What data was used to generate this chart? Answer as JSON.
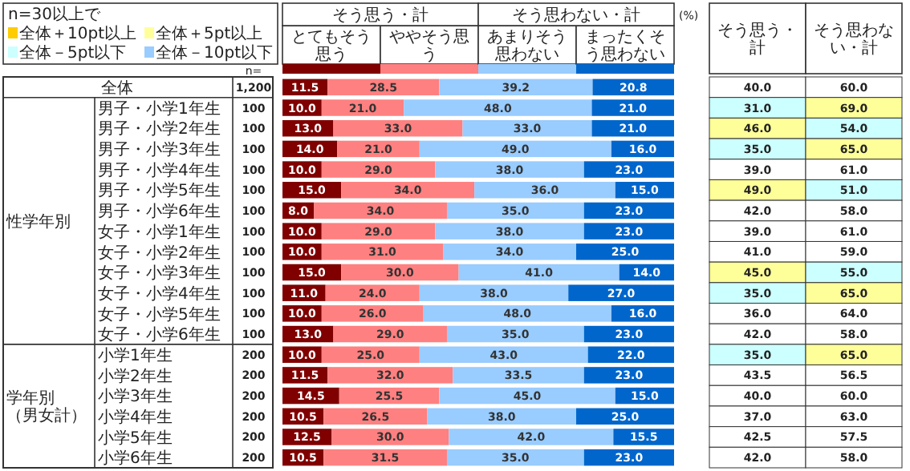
{
  "chart_data": [
    {
      "type": "bar",
      "orientation": "horizontal",
      "stacked": true,
      "legend": "top",
      "xlim": [
        0,
        100
      ],
      "categories": [
        "全体",
        "男子・小学1年生",
        "男子・小学2年生",
        "男子・小学3年生",
        "男子・小学4年生",
        "男子・小学5年生",
        "男子・小学6年生",
        "女子・小学1年生",
        "女子・小学2年生",
        "女子・小学3年生",
        "女子・小学4年生",
        "女子・小学5年生",
        "女子・小学6年生",
        "小学1年生",
        "小学2年生",
        "小学3年生",
        "小学4年生",
        "小学5年生",
        "小学6年生"
      ],
      "series": [
        {
          "name": "とてもそう思う",
          "color": "#800000",
          "values": [
            11.5,
            10.0,
            13.0,
            14.0,
            10.0,
            15.0,
            8.0,
            10.0,
            10.0,
            15.0,
            11.0,
            10.0,
            13.0,
            10.0,
            11.5,
            14.5,
            10.5,
            12.5,
            10.5
          ],
          "value_labels": [
            "11.5",
            "10.0",
            "13.0",
            "14.0",
            "10.0",
            "15.0",
            "8.0",
            "10.0",
            "10.0",
            "15.0",
            "11.0",
            "10.0",
            "13.0",
            "10.0",
            "11.5",
            "14.5",
            "10.5",
            "12.5",
            "10.5"
          ]
        },
        {
          "name": "ややそう思う",
          "color": "#ff8080",
          "values": [
            28.5,
            21.0,
            33.0,
            21.0,
            29.0,
            34.0,
            34.0,
            29.0,
            31.0,
            30.0,
            24.0,
            26.0,
            29.0,
            25.0,
            32.0,
            25.5,
            26.5,
            30.0,
            31.5
          ],
          "value_labels": [
            "28.5",
            "21.0",
            "33.0",
            "21.0",
            "29.0",
            "34.0",
            "34.0",
            "29.0",
            "31.0",
            "30.0",
            "24.0",
            "26.0",
            "29.0",
            "25.0",
            "32.0",
            "25.5",
            "26.5",
            "30.0",
            "31.5"
          ]
        },
        {
          "name": "あまりそう思わない",
          "color": "#99ccff",
          "values": [
            39.2,
            48.0,
            33.0,
            49.0,
            38.0,
            36.0,
            35.0,
            38.0,
            34.0,
            41.0,
            38.0,
            48.0,
            35.0,
            43.0,
            33.5,
            45.0,
            38.0,
            42.0,
            35.0
          ],
          "value_labels": [
            "39.2",
            "48.0",
            "33.0",
            "49.0",
            "38.0",
            "36.0",
            "35.0",
            "38.0",
            "34.0",
            "41.0",
            "38.0",
            "48.0",
            "35.0",
            "43.0",
            "33.5",
            "45.0",
            "38.0",
            "42.0",
            "35.0"
          ]
        },
        {
          "name": "まったくそう思わない",
          "color": "#0066cc",
          "values": [
            20.8,
            21.0,
            21.0,
            16.0,
            23.0,
            15.0,
            23.0,
            23.0,
            25.0,
            14.0,
            27.0,
            16.0,
            23.0,
            22.0,
            23.0,
            15.0,
            25.0,
            15.5,
            23.0
          ],
          "value_labels": [
            "20.8",
            "21.0",
            "21.0",
            "16.0",
            "23.0",
            "15.0",
            "23.0",
            "23.0",
            "25.0",
            "14.0",
            "27.0",
            "16.0",
            "23.0",
            "22.0",
            "23.0",
            "15.0",
            "25.0",
            "15.5",
            "23.0"
          ]
        }
      ],
      "annotations": [
        "性学年別",
        "学年別（男女計）",
        "そう思う・計",
        "そう思わない・計",
        "(%)"
      ]
    },
    {
      "type": "other",
      "categories": [
        "そう思う・計",
        "そう思わない・計"
      ],
      "cell_labels": [
        [
          "40.0",
          "60.0"
        ],
        [
          "31.0",
          "69.0"
        ],
        [
          "46.0",
          "54.0"
        ],
        [
          "35.0",
          "65.0"
        ],
        [
          "39.0",
          "61.0"
        ],
        [
          "49.0",
          "51.0"
        ],
        [
          "42.0",
          "58.0"
        ],
        [
          "39.0",
          "61.0"
        ],
        [
          "41.0",
          "59.0"
        ],
        [
          "45.0",
          "55.0"
        ],
        [
          "35.0",
          "65.0"
        ],
        [
          "36.0",
          "64.0"
        ],
        [
          "42.0",
          "58.0"
        ],
        [
          "35.0",
          "65.0"
        ],
        [
          "43.5",
          "56.5"
        ],
        [
          "40.0",
          "60.0"
        ],
        [
          "37.0",
          "63.0"
        ],
        [
          "42.5",
          "57.5"
        ],
        [
          "42.0",
          "58.0"
        ]
      ]
    },
    {
      "type": "other",
      "title": "n=",
      "categories": [
        "1,200",
        "100",
        "100",
        "100",
        "100",
        "100",
        "100",
        "100",
        "100",
        "100",
        "100",
        "100",
        "100",
        "200",
        "200",
        "200",
        "200",
        "200",
        "200"
      ]
    },
    {
      "type": "other",
      "title": "n=30以上で",
      "categories": [
        "全体＋10pt以上",
        "全体＋5pt以上",
        "全体－5pt以下",
        "全体－10pt以下"
      ],
      "colors": [
        "#ffcc00",
        "#ffff99",
        "#ccffff",
        "#99ccff"
      ]
    }
  ]
}
